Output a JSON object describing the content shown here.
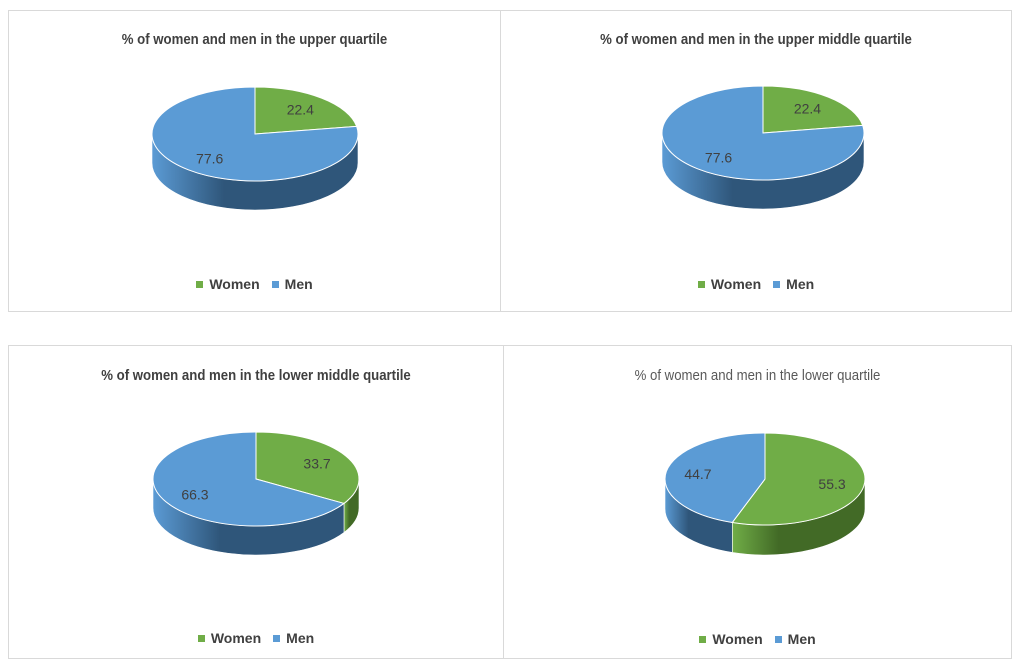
{
  "colors": {
    "women": "#70ad47",
    "men": "#5b9bd5",
    "women_side": "#426a26",
    "men_side": "#2f567a"
  },
  "chart_data": [
    {
      "type": "pie",
      "title": "% of women and men in the upper quartile",
      "categories": [
        "Women",
        "Men"
      ],
      "values": [
        22.4,
        77.6
      ],
      "legend_position": "bottom"
    },
    {
      "type": "pie",
      "title": "% of women and men in the upper middle quartile",
      "categories": [
        "Women",
        "Men"
      ],
      "values": [
        22.4,
        77.6
      ],
      "legend_position": "bottom"
    },
    {
      "type": "pie",
      "title": "% of women and men in the lower middle quartile",
      "categories": [
        "Women",
        "Men"
      ],
      "values": [
        33.7,
        66.3
      ],
      "legend_position": "bottom"
    },
    {
      "type": "pie",
      "title": "% of women and men in the lower quartile",
      "categories": [
        "Women",
        "Men"
      ],
      "values": [
        55.3,
        44.7
      ],
      "legend_position": "bottom"
    }
  ]
}
